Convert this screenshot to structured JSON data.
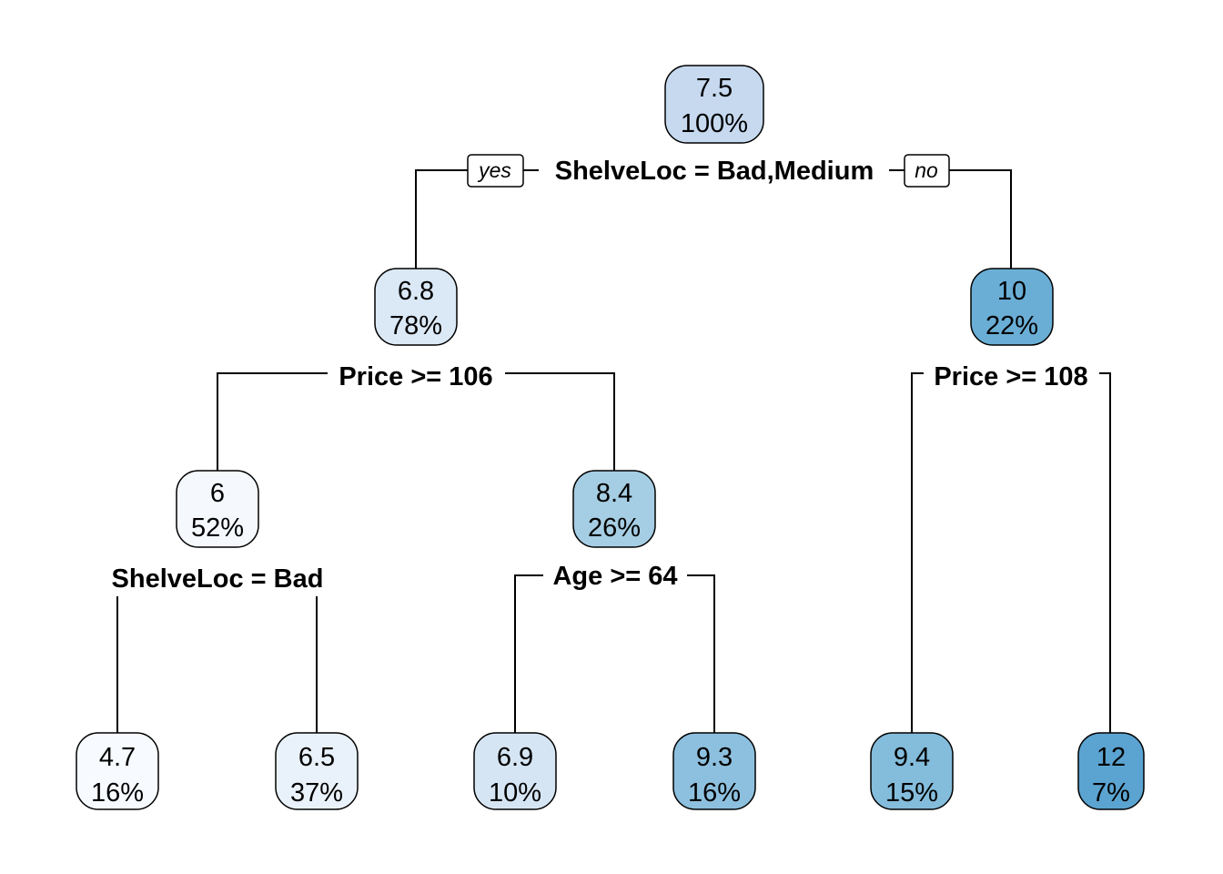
{
  "tree": {
    "nodes": [
      {
        "id": "n1",
        "value": "7.5",
        "percent": "100%",
        "color": "#c6d9ef"
      },
      {
        "id": "n2",
        "value": "6.8",
        "percent": "78%",
        "color": "#dbe8f5"
      },
      {
        "id": "n3",
        "value": "10",
        "percent": "22%",
        "color": "#6aaed6"
      },
      {
        "id": "n4",
        "value": "6",
        "percent": "52%",
        "color": "#f5f9fe"
      },
      {
        "id": "n5",
        "value": "8.4",
        "percent": "26%",
        "color": "#a5cde3"
      },
      {
        "id": "n8",
        "value": "4.7",
        "percent": "16%",
        "color": "#f7fbff"
      },
      {
        "id": "n9",
        "value": "6.5",
        "percent": "37%",
        "color": "#e9f2fa"
      },
      {
        "id": "n10",
        "value": "6.9",
        "percent": "10%",
        "color": "#d6e5f4"
      },
      {
        "id": "n11",
        "value": "9.3",
        "percent": "16%",
        "color": "#8dc0de"
      },
      {
        "id": "n6",
        "value": "9.4",
        "percent": "15%",
        "color": "#84bcdb"
      },
      {
        "id": "n7",
        "value": "12",
        "percent": "7%",
        "color": "#5ba3d0"
      }
    ],
    "splits": {
      "root": "ShelveLoc = Bad,Medium",
      "left": "Price >= 106",
      "right": "Price >= 108",
      "left_left": "ShelveLoc = Bad",
      "left_right": "Age >= 64"
    },
    "branch_labels": {
      "yes": "yes",
      "no": "no"
    }
  }
}
